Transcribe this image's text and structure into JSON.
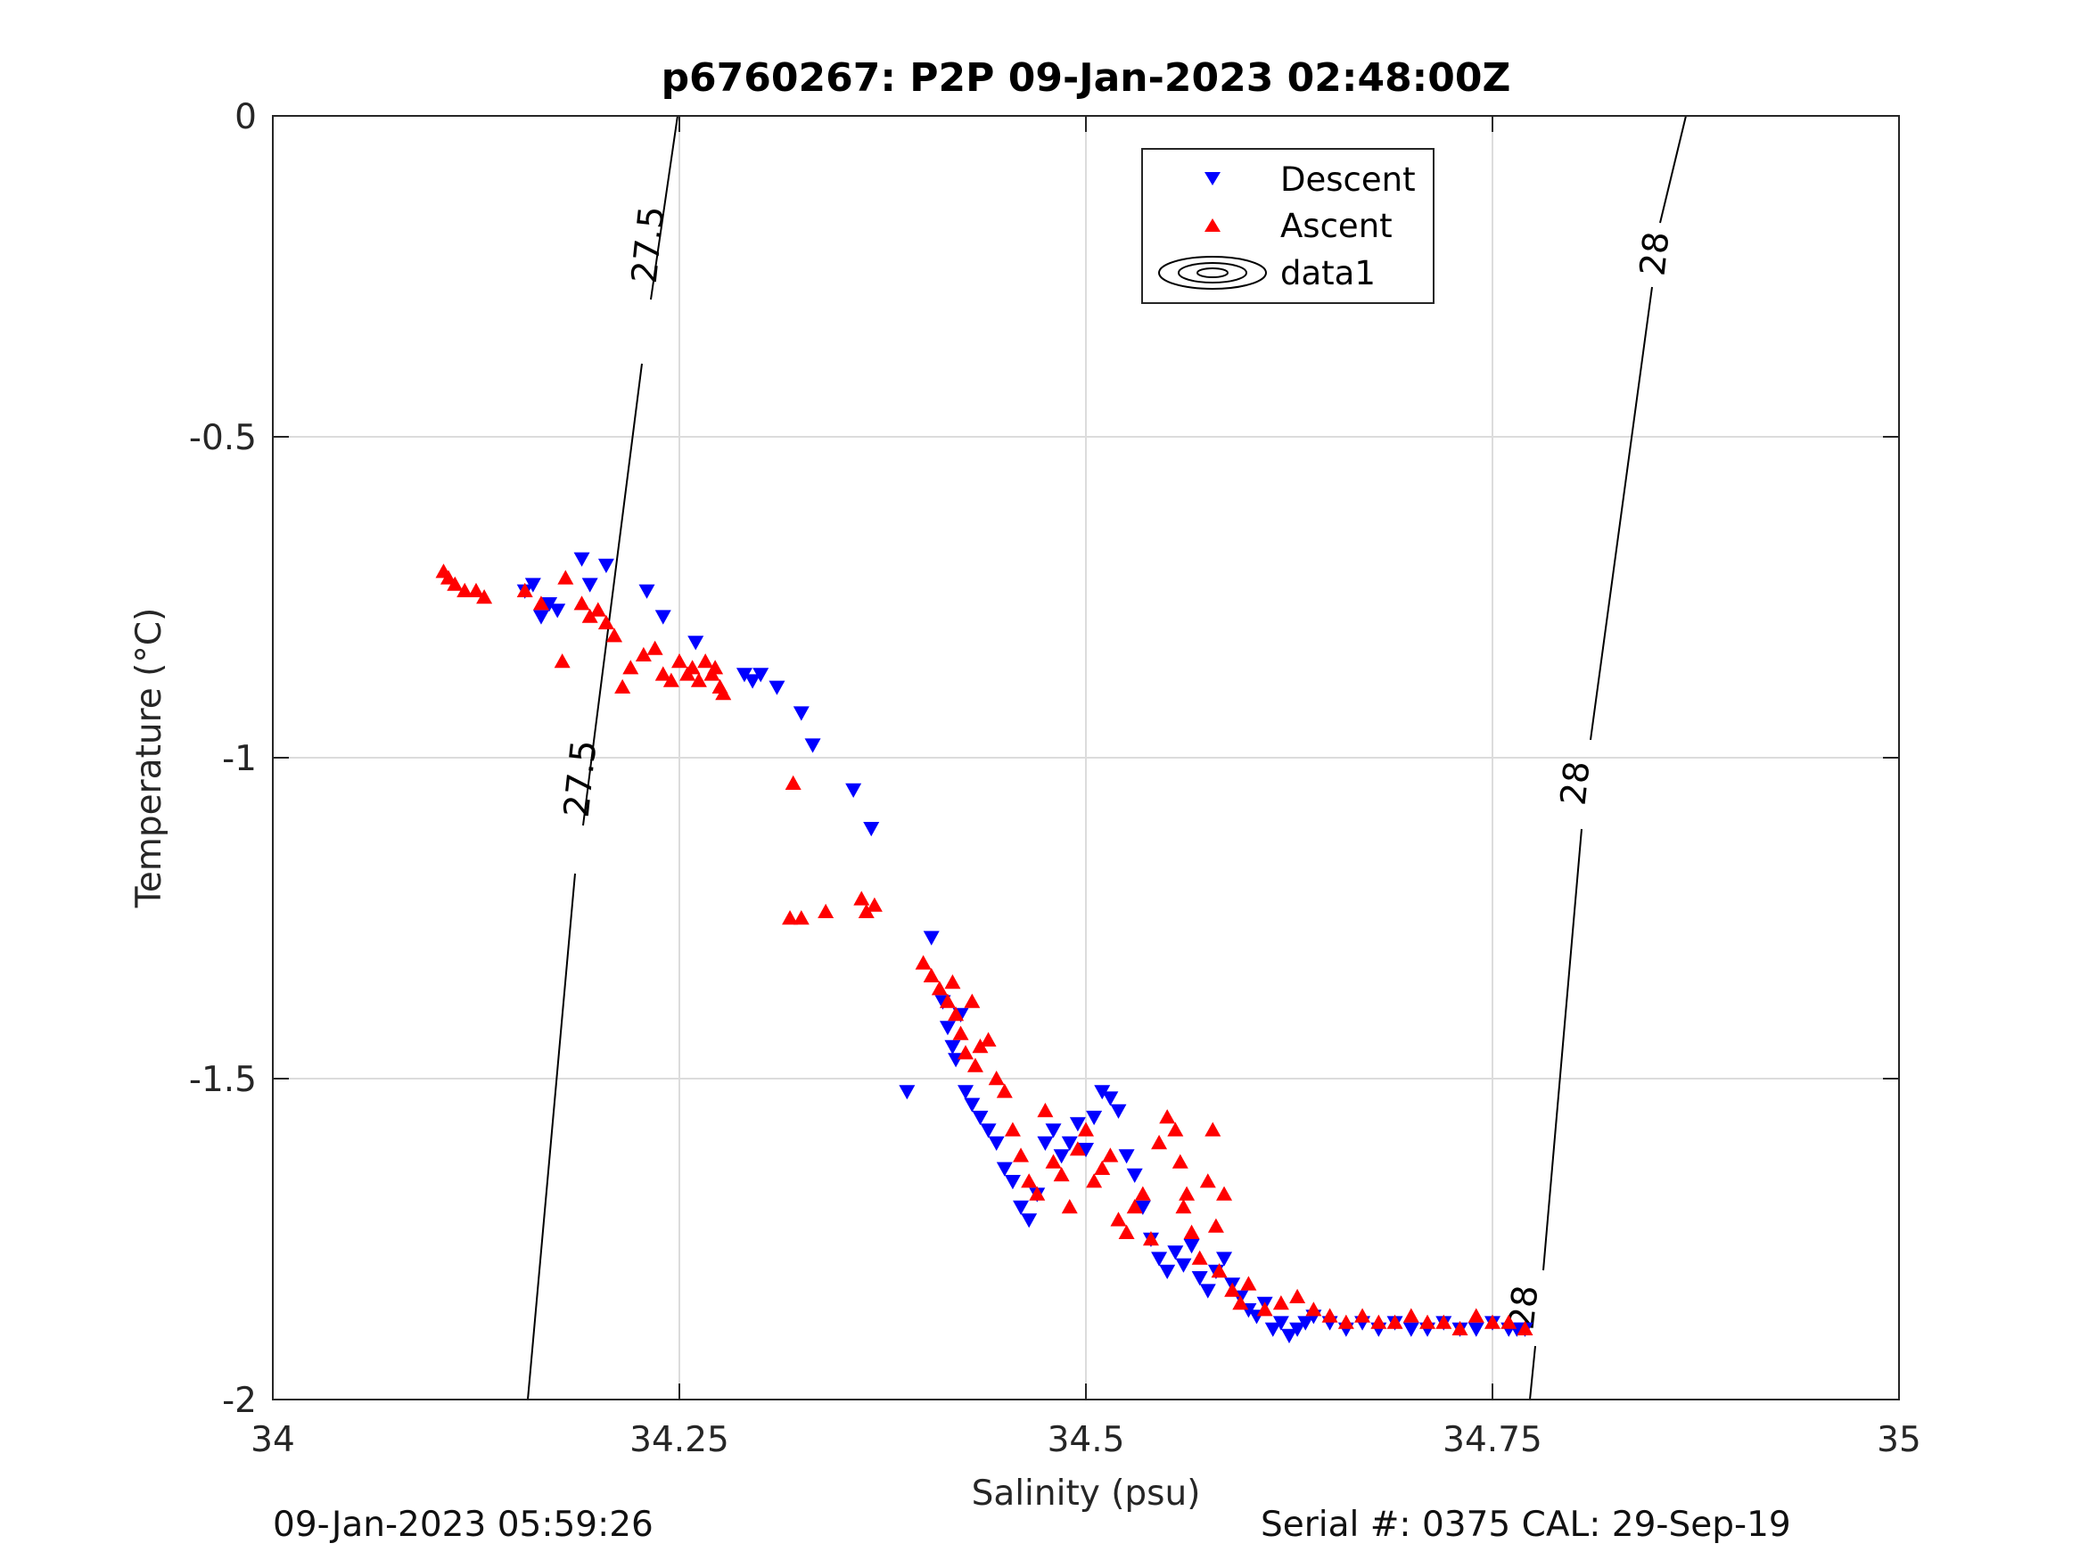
{
  "chart_data": {
    "type": "scatter",
    "title": "p6760267: P2P 09-Jan-2023 02:48:00Z",
    "xlabel": "Salinity (psu)",
    "ylabel": "Temperature (°C)",
    "xlim": [
      34,
      35
    ],
    "ylim": [
      -2,
      0
    ],
    "xticks": [
      34,
      34.25,
      34.5,
      34.75,
      35
    ],
    "xtick_labels": [
      "34",
      "34.25",
      "34.5",
      "34.75",
      "35"
    ],
    "yticks": [
      0,
      -0.5,
      -1,
      -1.5,
      -2
    ],
    "ytick_labels": [
      "0",
      "-0.5",
      "-1",
      "-1.5",
      "-2"
    ],
    "grid": true,
    "legend_position": "top-right",
    "legend": [
      "Descent",
      "Ascent",
      "data1"
    ],
    "series": [
      {
        "name": "Descent",
        "marker": "triangle-down",
        "color": "#0000ff",
        "x": [
          34.155,
          34.16,
          34.165,
          34.17,
          34.175,
          34.19,
          34.195,
          34.205,
          34.23,
          34.24,
          34.26,
          34.29,
          34.295,
          34.3,
          34.31,
          34.325,
          34.332,
          34.357,
          34.368,
          34.39,
          34.405,
          34.412,
          34.415,
          34.418,
          34.42,
          34.423,
          34.426,
          34.43,
          34.435,
          34.44,
          34.445,
          34.45,
          34.455,
          34.46,
          34.465,
          34.47,
          34.475,
          34.48,
          34.485,
          34.49,
          34.495,
          34.5,
          34.505,
          34.51,
          34.515,
          34.52,
          34.525,
          34.53,
          34.535,
          34.54,
          34.545,
          34.55,
          34.555,
          34.56,
          34.565,
          34.57,
          34.575,
          34.58,
          34.585,
          34.59,
          34.595,
          34.6,
          34.605,
          34.61,
          34.615,
          34.62,
          34.625,
          34.63,
          34.635,
          34.64,
          34.65,
          34.66,
          34.67,
          34.68,
          34.69,
          34.7,
          34.71,
          34.72,
          34.73,
          34.74,
          34.75,
          34.76,
          34.765,
          34.77
        ],
        "y": [
          -0.74,
          -0.73,
          -0.78,
          -0.76,
          -0.77,
          -0.69,
          -0.73,
          -0.7,
          -0.74,
          -0.78,
          -0.82,
          -0.87,
          -0.88,
          -0.87,
          -0.89,
          -0.93,
          -0.98,
          -1.05,
          -1.11,
          -1.52,
          -1.28,
          -1.38,
          -1.42,
          -1.45,
          -1.47,
          -1.4,
          -1.52,
          -1.54,
          -1.56,
          -1.58,
          -1.6,
          -1.64,
          -1.66,
          -1.7,
          -1.72,
          -1.68,
          -1.6,
          -1.58,
          -1.62,
          -1.6,
          -1.57,
          -1.61,
          -1.56,
          -1.52,
          -1.53,
          -1.55,
          -1.62,
          -1.65,
          -1.7,
          -1.75,
          -1.78,
          -1.8,
          -1.77,
          -1.79,
          -1.76,
          -1.81,
          -1.83,
          -1.8,
          -1.78,
          -1.82,
          -1.84,
          -1.86,
          -1.87,
          -1.85,
          -1.89,
          -1.88,
          -1.9,
          -1.89,
          -1.88,
          -1.87,
          -1.88,
          -1.89,
          -1.88,
          -1.89,
          -1.88,
          -1.89,
          -1.89,
          -1.88,
          -1.89,
          -1.89,
          -1.88,
          -1.89,
          -1.89,
          -1.89
        ]
      },
      {
        "name": "Ascent",
        "marker": "triangle-up",
        "color": "#ff0000",
        "x": [
          34.105,
          34.108,
          34.112,
          34.118,
          34.125,
          34.13,
          34.155,
          34.165,
          34.178,
          34.18,
          34.19,
          34.195,
          34.2,
          34.205,
          34.21,
          34.215,
          34.22,
          34.228,
          34.235,
          34.24,
          34.245,
          34.25,
          34.255,
          34.258,
          34.262,
          34.266,
          34.27,
          34.272,
          34.275,
          34.277,
          34.318,
          34.32,
          34.325,
          34.34,
          34.362,
          34.365,
          34.37,
          34.4,
          34.405,
          34.41,
          34.415,
          34.418,
          34.42,
          34.423,
          34.426,
          34.43,
          34.432,
          34.435,
          34.44,
          34.445,
          34.45,
          34.455,
          34.46,
          34.465,
          34.47,
          34.475,
          34.48,
          34.485,
          34.49,
          34.495,
          34.5,
          34.505,
          34.51,
          34.515,
          34.52,
          34.525,
          34.53,
          34.535,
          34.54,
          34.545,
          34.55,
          34.555,
          34.558,
          34.56,
          34.562,
          34.565,
          34.57,
          34.575,
          34.578,
          34.58,
          34.582,
          34.585,
          34.59,
          34.595,
          34.6,
          34.61,
          34.62,
          34.63,
          34.64,
          34.65,
          34.66,
          34.67,
          34.68,
          34.69,
          34.7,
          34.71,
          34.72,
          34.73,
          34.74,
          34.75,
          34.76,
          34.77
        ],
        "y": [
          -0.71,
          -0.72,
          -0.73,
          -0.74,
          -0.74,
          -0.75,
          -0.74,
          -0.76,
          -0.85,
          -0.72,
          -0.76,
          -0.78,
          -0.77,
          -0.79,
          -0.81,
          -0.89,
          -0.86,
          -0.84,
          -0.83,
          -0.87,
          -0.88,
          -0.85,
          -0.87,
          -0.86,
          -0.88,
          -0.85,
          -0.87,
          -0.86,
          -0.89,
          -0.9,
          -1.25,
          -1.04,
          -1.25,
          -1.24,
          -1.22,
          -1.24,
          -1.23,
          -1.32,
          -1.34,
          -1.36,
          -1.38,
          -1.35,
          -1.4,
          -1.43,
          -1.46,
          -1.38,
          -1.48,
          -1.45,
          -1.44,
          -1.5,
          -1.52,
          -1.58,
          -1.62,
          -1.66,
          -1.68,
          -1.55,
          -1.63,
          -1.65,
          -1.7,
          -1.61,
          -1.58,
          -1.66,
          -1.64,
          -1.62,
          -1.72,
          -1.74,
          -1.7,
          -1.68,
          -1.75,
          -1.6,
          -1.56,
          -1.58,
          -1.63,
          -1.7,
          -1.68,
          -1.74,
          -1.78,
          -1.66,
          -1.58,
          -1.73,
          -1.8,
          -1.68,
          -1.83,
          -1.85,
          -1.82,
          -1.86,
          -1.85,
          -1.84,
          -1.86,
          -1.87,
          -1.88,
          -1.87,
          -1.88,
          -1.88,
          -1.87,
          -1.88,
          -1.88,
          -1.89,
          -1.87,
          -1.88,
          -1.88,
          -1.89
        ]
      }
    ],
    "isopycnal_labels": [
      "27.5",
      "27.5",
      "28",
      "28",
      "28"
    ]
  },
  "footer": {
    "left": "09-Jan-2023 05:59:26",
    "right": "Serial #: 0375  CAL: 29-Sep-19"
  },
  "colors": {
    "descent": "#0000ff",
    "ascent": "#ff0000",
    "grid": "#dcdcdc",
    "axis": "#262626",
    "contour": "#000000"
  }
}
